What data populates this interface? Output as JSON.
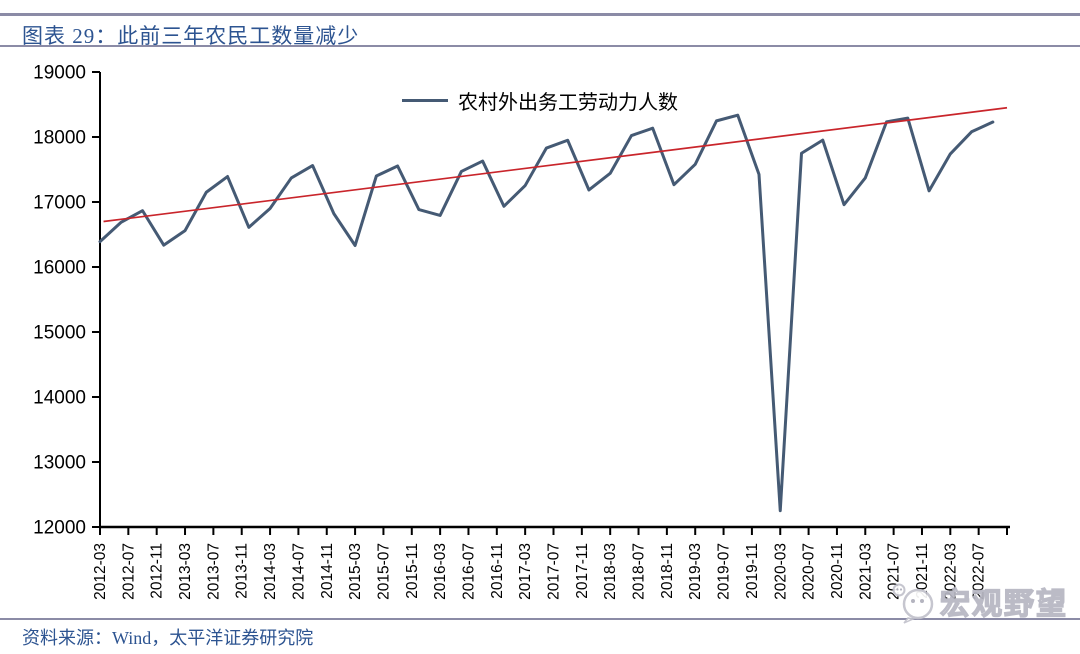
{
  "header": {
    "title": "图表 29：此前三年农民工数量减少"
  },
  "legend": {
    "label": "农村外出务工劳动力人数"
  },
  "footer": {
    "source": "资料来源：Wind，太平洋证券研究院"
  },
  "watermark": {
    "text": "宏观野望",
    "icon": "chat-bubble-mascot"
  },
  "colors": {
    "series": "#455a74",
    "trend": "#c9252b",
    "heading_blue": "#2d5491",
    "rule": "#8b8ba6",
    "axis": "#000000",
    "watermark_gray": "#b6b6c2"
  },
  "chart_data": {
    "type": "line",
    "title": "农村外出务工劳动力人数",
    "xlabel": "",
    "ylabel": "",
    "grid": false,
    "legend_position": "top-center",
    "ylim": [
      12000,
      19000
    ],
    "yticks": [
      19000,
      18000,
      17000,
      16000,
      15000,
      14000,
      13000,
      12000
    ],
    "x": [
      "2012-03",
      "2012-06",
      "2012-09",
      "2012-12",
      "2013-03",
      "2013-06",
      "2013-09",
      "2013-12",
      "2014-03",
      "2014-06",
      "2014-09",
      "2014-12",
      "2015-03",
      "2015-06",
      "2015-09",
      "2015-12",
      "2016-03",
      "2016-06",
      "2016-09",
      "2016-12",
      "2017-03",
      "2017-06",
      "2017-09",
      "2017-12",
      "2018-03",
      "2018-06",
      "2018-09",
      "2018-12",
      "2019-03",
      "2019-06",
      "2019-09",
      "2019-12",
      "2020-03",
      "2020-06",
      "2020-09",
      "2020-12",
      "2021-03",
      "2021-06",
      "2021-09",
      "2021-12",
      "2022-03",
      "2022-06",
      "2022-09"
    ],
    "values": [
      16390,
      16690,
      16867,
      16336,
      16560,
      17150,
      17392,
      16610,
      16900,
      17370,
      17561,
      16821,
      16331,
      17400,
      17554,
      16884,
      16793,
      17470,
      17630,
      16934,
      17253,
      17830,
      17950,
      17185,
      17441,
      18022,
      18135,
      17266,
      17580,
      18248,
      18336,
      17425,
      12251,
      17750,
      17952,
      16959,
      17370,
      18233,
      18290,
      17172,
      17740,
      18080,
      18230
    ],
    "x_tick_labels": [
      "2012-03",
      "2012-07",
      "2012-11",
      "2013-03",
      "2013-07",
      "2013-11",
      "2014-03",
      "2014-07",
      "2014-11",
      "2015-03",
      "2015-07",
      "2015-11",
      "2016-03",
      "2016-07",
      "2016-11",
      "2017-03",
      "2017-07",
      "2017-11",
      "2018-03",
      "2018-07",
      "2018-11",
      "2019-03",
      "2019-07",
      "2019-11",
      "2020-03",
      "2020-07",
      "2020-11",
      "2021-03",
      "2021-07",
      "2021-11",
      "2022-03",
      "2022-07"
    ],
    "months_per_tick": 4,
    "trendline": {
      "value_start": 16700,
      "value_end": 18450,
      "x_start_month": 0.5,
      "x_end_month": 128
    }
  }
}
